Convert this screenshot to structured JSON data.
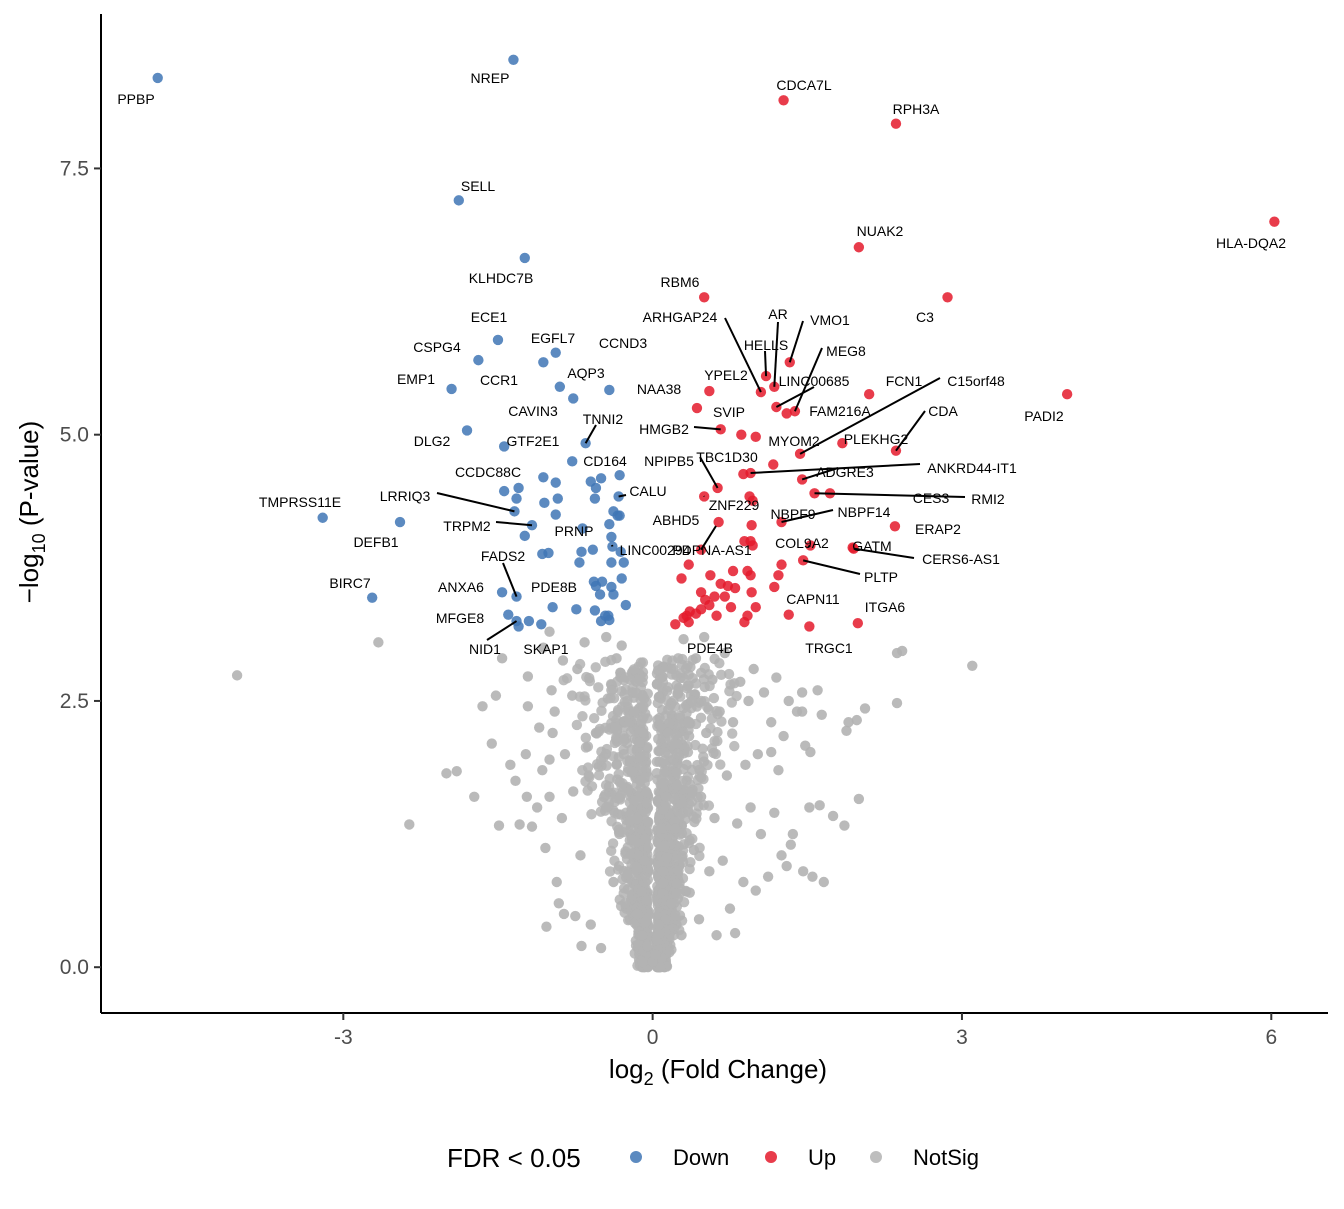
{
  "chart_data": {
    "type": "scatter",
    "xlabel": "log2 (Fold Change)",
    "ylabel": "−log10 (P-value)",
    "xlim": [
      -5.35,
      6.55
    ],
    "ylim": [
      -0.43,
      8.95
    ],
    "x_ticks": [
      -3,
      0,
      3,
      6
    ],
    "y_ticks": [
      0.0,
      2.5,
      5.0,
      7.5
    ],
    "x_tick_labels": [
      "-3",
      "0",
      "3",
      "6"
    ],
    "y_tick_labels": [
      "0.0",
      "2.5",
      "5.0",
      "7.5"
    ],
    "legend": {
      "title": "FDR < 0.05",
      "placement": "bottom",
      "entries": [
        {
          "label": "Down",
          "color": "#3F75B5"
        },
        {
          "label": "Up",
          "color": "#E41A2C"
        },
        {
          "label": "NotSig",
          "color": "#B3B3B3"
        }
      ]
    },
    "series_colors": {
      "Down": "#3F75B5",
      "Up": "#E41A2C",
      "NotSig": "#B3B3B3"
    },
    "labeled_points": [
      {
        "gene": "PPBP",
        "x": -4.8,
        "y": 8.35,
        "group": "Down"
      },
      {
        "gene": "NREP",
        "x": -1.35,
        "y": 8.52,
        "group": "Down"
      },
      {
        "gene": "SELL",
        "x": -1.88,
        "y": 7.2,
        "group": "Down"
      },
      {
        "gene": "KLHDC7B",
        "x": -1.24,
        "y": 6.66,
        "group": "Down"
      },
      {
        "gene": "ECE1",
        "x": -1.5,
        "y": 5.89,
        "group": "Down"
      },
      {
        "gene": "EGFL7",
        "x": -0.94,
        "y": 5.77,
        "group": "Down"
      },
      {
        "gene": "CSPG4",
        "x": -1.69,
        "y": 5.7,
        "group": "Down"
      },
      {
        "gene": "CCND3",
        "x": -0.42,
        "y": 5.42,
        "group": "Down"
      },
      {
        "gene": "AQP3",
        "x": -0.9,
        "y": 5.45,
        "group": "Down"
      },
      {
        "gene": "CCR1",
        "x": -1.06,
        "y": 5.68,
        "group": "Down"
      },
      {
        "gene": "EMP1",
        "x": -1.95,
        "y": 5.43,
        "group": "Down"
      },
      {
        "gene": "CAVIN3",
        "x": -0.77,
        "y": 5.34,
        "group": "Down"
      },
      {
        "gene": "TNNI2",
        "x": -0.65,
        "y": 4.92,
        "group": "Down"
      },
      {
        "gene": "DLG2",
        "x": -1.8,
        "y": 5.04,
        "group": "Down"
      },
      {
        "gene": "GTF2E1",
        "x": -1.44,
        "y": 4.89,
        "group": "Down"
      },
      {
        "gene": "CD164",
        "x": -0.78,
        "y": 4.75,
        "group": "Down"
      },
      {
        "gene": "CCDC88C",
        "x": -1.44,
        "y": 4.47,
        "group": "Down"
      },
      {
        "gene": "CALU",
        "x": -0.33,
        "y": 4.42,
        "group": "Down"
      },
      {
        "gene": "LRRIQ3",
        "x": -1.34,
        "y": 4.28,
        "group": "Down"
      },
      {
        "gene": "TMPRSS11E",
        "x": -3.2,
        "y": 4.22,
        "group": "Down"
      },
      {
        "gene": "DEFB1",
        "x": -2.45,
        "y": 4.18,
        "group": "Down"
      },
      {
        "gene": "TRPM2",
        "x": -1.17,
        "y": 4.15,
        "group": "Down"
      },
      {
        "gene": "PRNP",
        "x": -0.34,
        "y": 4.24,
        "group": "Down"
      },
      {
        "gene": "LINC00294",
        "x": -0.39,
        "y": 3.95,
        "group": "Down"
      },
      {
        "gene": "FADS2",
        "x": -1.32,
        "y": 3.48,
        "group": "Down"
      },
      {
        "gene": "BIRC7",
        "x": -2.72,
        "y": 3.47,
        "group": "Down"
      },
      {
        "gene": "ANXA6",
        "x": -1.46,
        "y": 3.52,
        "group": "Down"
      },
      {
        "gene": "PDE8B",
        "x": -0.55,
        "y": 3.58,
        "group": "Down"
      },
      {
        "gene": "MFGE8",
        "x": -1.4,
        "y": 3.31,
        "group": "Down"
      },
      {
        "gene": "NID1",
        "x": -1.32,
        "y": 3.25,
        "group": "Down"
      },
      {
        "gene": "SKAP1",
        "x": -1.08,
        "y": 3.22,
        "group": "Down"
      },
      {
        "gene": "CDCA7L",
        "x": 1.27,
        "y": 8.14,
        "group": "Up"
      },
      {
        "gene": "RPH3A",
        "x": 2.36,
        "y": 7.92,
        "group": "Up"
      },
      {
        "gene": "HLA-DQA2",
        "x": 6.03,
        "y": 7.0,
        "group": "Up"
      },
      {
        "gene": "NUAK2",
        "x": 2.0,
        "y": 6.76,
        "group": "Up"
      },
      {
        "gene": "RBM6",
        "x": 0.5,
        "y": 6.29,
        "group": "Up"
      },
      {
        "gene": "C3",
        "x": 2.86,
        "y": 6.29,
        "group": "Up"
      },
      {
        "gene": "ARHGAP24",
        "x": 1.05,
        "y": 5.4,
        "group": "Up"
      },
      {
        "gene": "AR",
        "x": 1.18,
        "y": 5.45,
        "group": "Up"
      },
      {
        "gene": "VMO1",
        "x": 1.33,
        "y": 5.68,
        "group": "Up"
      },
      {
        "gene": "HELLS",
        "x": 1.1,
        "y": 5.55,
        "group": "Up"
      },
      {
        "gene": "MEG8",
        "x": 1.38,
        "y": 5.22,
        "group": "Up"
      },
      {
        "gene": "YPEL2",
        "x": 0.55,
        "y": 5.41,
        "group": "Up"
      },
      {
        "gene": "LINC00685",
        "x": 1.2,
        "y": 5.26,
        "group": "Up"
      },
      {
        "gene": "FCN1",
        "x": 2.1,
        "y": 5.38,
        "group": "Up"
      },
      {
        "gene": "C15orf48",
        "x": 1.43,
        "y": 4.82,
        "group": "Up"
      },
      {
        "gene": "NAA38",
        "x": 0.43,
        "y": 5.25,
        "group": "Up"
      },
      {
        "gene": "PADI2",
        "x": 4.02,
        "y": 5.38,
        "group": "Up"
      },
      {
        "gene": "FAM216A",
        "x": 1.3,
        "y": 5.2,
        "group": "Up"
      },
      {
        "gene": "SVIP",
        "x": 0.86,
        "y": 5.0,
        "group": "Up"
      },
      {
        "gene": "CDA",
        "x": 2.36,
        "y": 4.85,
        "group": "Up"
      },
      {
        "gene": "HMGB2",
        "x": 0.66,
        "y": 5.05,
        "group": "Up"
      },
      {
        "gene": "MYOM2",
        "x": 1.0,
        "y": 4.98,
        "group": "Up"
      },
      {
        "gene": "PLEKHG2",
        "x": 1.84,
        "y": 4.92,
        "group": "Up"
      },
      {
        "gene": "TBC1D30",
        "x": 0.88,
        "y": 4.63,
        "group": "Up"
      },
      {
        "gene": "ANKRD44-IT1",
        "x": 0.95,
        "y": 4.64,
        "group": "Up"
      },
      {
        "gene": "NPIPB5",
        "x": 0.63,
        "y": 4.5,
        "group": "Up"
      },
      {
        "gene": "ADGRE3",
        "x": 1.45,
        "y": 4.58,
        "group": "Up"
      },
      {
        "gene": "CES3",
        "x": 1.72,
        "y": 4.45,
        "group": "Up"
      },
      {
        "gene": "RMI2",
        "x": 1.57,
        "y": 4.45,
        "group": "Up"
      },
      {
        "gene": "ZNF229",
        "x": 0.5,
        "y": 4.42,
        "group": "Up"
      },
      {
        "gene": "NBPF9",
        "x": 0.94,
        "y": 4.42,
        "group": "Up"
      },
      {
        "gene": "NBPF14",
        "x": 1.25,
        "y": 4.18,
        "group": "Up"
      },
      {
        "gene": "ABHD5",
        "x": 0.64,
        "y": 4.18,
        "group": "Up"
      },
      {
        "gene": "ERAP2",
        "x": 2.35,
        "y": 4.14,
        "group": "Up"
      },
      {
        "gene": "PDPNA-AS1",
        "x": 0.47,
        "y": 3.92,
        "group": "Up"
      },
      {
        "gene": "COL9A2",
        "x": 1.53,
        "y": 3.96,
        "group": "Up"
      },
      {
        "gene": "GATM",
        "x": 1.94,
        "y": 3.94,
        "group": "Up"
      },
      {
        "gene": "CERS6-AS1",
        "x": 1.95,
        "y": 3.93,
        "group": "Up"
      },
      {
        "gene": "PLTP",
        "x": 1.46,
        "y": 3.82,
        "group": "Up"
      },
      {
        "gene": "CAPN11",
        "x": 1.32,
        "y": 3.31,
        "group": "Up"
      },
      {
        "gene": "ITGA6",
        "x": 1.99,
        "y": 3.23,
        "group": "Up"
      },
      {
        "gene": "PDE4B",
        "x": 0.35,
        "y": 3.24,
        "group": "Up"
      },
      {
        "gene": "TRGC1",
        "x": 1.52,
        "y": 3.2,
        "group": "Up"
      }
    ],
    "unlabeled_down": [
      [
        -1.24,
        4.05
      ],
      [
        -0.32,
        4.62
      ],
      [
        -0.32,
        4.24
      ],
      [
        -0.5,
        4.59
      ],
      [
        -0.6,
        4.56
      ],
      [
        -0.55,
        4.5
      ],
      [
        -0.56,
        4.4
      ],
      [
        -0.94,
        4.55
      ],
      [
        -0.92,
        4.4
      ],
      [
        -1.06,
        4.6
      ],
      [
        -1.32,
        4.4
      ],
      [
        -1.3,
        4.5
      ],
      [
        -1.05,
        4.36
      ],
      [
        -0.94,
        4.25
      ],
      [
        -0.42,
        4.16
      ],
      [
        -0.38,
        4.28
      ],
      [
        -0.68,
        4.12
      ],
      [
        -0.4,
        4.04
      ],
      [
        -0.58,
        3.92
      ],
      [
        -0.4,
        3.8
      ],
      [
        -0.28,
        3.8
      ],
      [
        -0.71,
        3.8
      ],
      [
        -1.01,
        3.89
      ],
      [
        -1.07,
        3.88
      ],
      [
        -0.69,
        3.9
      ],
      [
        -0.31,
        3.9
      ],
      [
        -0.57,
        3.62
      ],
      [
        -0.49,
        3.62
      ],
      [
        -0.4,
        3.57
      ],
      [
        -0.3,
        3.65
      ],
      [
        -0.51,
        3.5
      ],
      [
        -0.38,
        3.5
      ],
      [
        -0.26,
        3.4
      ],
      [
        -0.46,
        3.3
      ],
      [
        -0.5,
        3.25
      ],
      [
        -0.42,
        3.26
      ],
      [
        -0.56,
        3.35
      ],
      [
        -0.74,
        3.36
      ],
      [
        -0.97,
        3.38
      ],
      [
        -1.3,
        3.2
      ],
      [
        -1.2,
        3.25
      ],
      [
        -0.43,
        3.3
      ]
    ],
    "unlabeled_up": [
      [
        0.22,
        3.22
      ],
      [
        0.3,
        3.28
      ],
      [
        0.33,
        3.3
      ],
      [
        0.36,
        3.34
      ],
      [
        0.42,
        3.32
      ],
      [
        0.47,
        3.36
      ],
      [
        0.55,
        3.4
      ],
      [
        0.62,
        3.3
      ],
      [
        0.76,
        3.38
      ],
      [
        0.92,
        3.3
      ],
      [
        1.0,
        3.38
      ],
      [
        0.89,
        3.24
      ],
      [
        0.35,
        3.78
      ],
      [
        0.28,
        3.65
      ],
      [
        0.47,
        3.52
      ],
      [
        0.6,
        3.48
      ],
      [
        0.66,
        3.6
      ],
      [
        0.73,
        3.58
      ],
      [
        0.8,
        3.56
      ],
      [
        0.92,
        3.72
      ],
      [
        0.95,
        3.68
      ],
      [
        0.96,
        3.52
      ],
      [
        1.18,
        3.57
      ],
      [
        1.22,
        3.68
      ],
      [
        1.25,
        3.78
      ],
      [
        0.56,
        3.68
      ],
      [
        0.51,
        3.45
      ],
      [
        0.7,
        3.48
      ],
      [
        0.78,
        3.72
      ],
      [
        0.89,
        4.0
      ],
      [
        0.95,
        4.0
      ],
      [
        0.97,
        3.96
      ],
      [
        0.96,
        4.15
      ],
      [
        0.97,
        4.38
      ],
      [
        1.17,
        4.72
      ]
    ],
    "notsig_scatter": [
      [
        -4.03,
        2.74
      ],
      [
        -2.66,
        3.05
      ],
      [
        -2.36,
        1.34
      ],
      [
        -2.0,
        1.82
      ],
      [
        -1.9,
        1.84
      ],
      [
        -1.73,
        1.6
      ],
      [
        -1.65,
        2.45
      ],
      [
        -1.56,
        2.1
      ],
      [
        -1.52,
        2.55
      ],
      [
        -1.49,
        1.33
      ],
      [
        -1.46,
        2.9
      ],
      [
        -1.38,
        1.9
      ],
      [
        -1.33,
        1.75
      ],
      [
        -1.29,
        1.34
      ],
      [
        -1.21,
        2.73
      ],
      [
        -1.21,
        2.45
      ],
      [
        -1.23,
        2.0
      ],
      [
        -1.22,
        1.6
      ],
      [
        -1.17,
        1.32
      ],
      [
        -1.12,
        1.5
      ],
      [
        -1.06,
        3.0
      ],
      [
        -1.1,
        2.25
      ],
      [
        -1.07,
        1.85
      ],
      [
        -1.04,
        1.12
      ],
      [
        -1.03,
        0.38
      ],
      [
        -1.0,
        3.15
      ],
      [
        -0.98,
        2.6
      ],
      [
        -1.0,
        1.95
      ],
      [
        -1.0,
        1.6
      ],
      [
        -0.97,
        2.2
      ],
      [
        -0.95,
        2.4
      ],
      [
        -0.93,
        0.8
      ],
      [
        -0.91,
        0.6
      ],
      [
        -0.87,
        2.88
      ],
      [
        -0.88,
        1.4
      ],
      [
        -0.86,
        0.5
      ],
      [
        -0.85,
        2.0
      ],
      [
        -0.78,
        2.55
      ],
      [
        -0.77,
        1.65
      ],
      [
        -0.75,
        0.48
      ],
      [
        -0.73,
        2.8
      ],
      [
        -0.7,
        1.05
      ],
      [
        -0.69,
        0.2
      ],
      [
        -0.66,
        3.05
      ],
      [
        -0.62,
        1.8
      ],
      [
        -0.6,
        0.4
      ],
      [
        -0.55,
        2.2
      ],
      [
        -0.5,
        0.18
      ],
      [
        -0.45,
        3.1
      ],
      [
        -0.45,
        1.5
      ],
      [
        -0.4,
        2.6
      ],
      [
        -0.38,
        0.8
      ],
      [
        -0.35,
        2.9
      ],
      [
        -0.3,
        3.02
      ],
      [
        -0.28,
        2.0
      ],
      [
        -0.22,
        2.7
      ],
      [
        -0.2,
        1.2
      ],
      [
        -0.18,
        2.4
      ],
      [
        -0.15,
        0.5
      ],
      [
        -0.12,
        1.75
      ],
      [
        -0.1,
        0.3
      ],
      [
        -0.08,
        1.0
      ],
      [
        -0.05,
        0.2
      ],
      [
        -0.03,
        0.1
      ],
      [
        0.0,
        0.05
      ],
      [
        0.03,
        0.12
      ],
      [
        0.06,
        0.4
      ],
      [
        0.1,
        0.9
      ],
      [
        0.13,
        1.6
      ],
      [
        0.15,
        2.2
      ],
      [
        0.18,
        0.6
      ],
      [
        0.2,
        2.8
      ],
      [
        0.22,
        1.3
      ],
      [
        0.25,
        2.6
      ],
      [
        0.28,
        0.3
      ],
      [
        0.3,
        3.08
      ],
      [
        0.33,
        1.9
      ],
      [
        0.36,
        0.7
      ],
      [
        0.38,
        2.5
      ],
      [
        0.4,
        1.1
      ],
      [
        0.42,
        2.9
      ],
      [
        0.45,
        0.45
      ],
      [
        0.47,
        1.6
      ],
      [
        0.5,
        3.1
      ],
      [
        0.52,
        2.2
      ],
      [
        0.55,
        0.9
      ],
      [
        0.58,
        2.7
      ],
      [
        0.6,
        1.4
      ],
      [
        0.62,
        0.3
      ],
      [
        0.65,
        2.4
      ],
      [
        0.68,
        1.0
      ],
      [
        0.7,
        2.95
      ],
      [
        0.72,
        1.8
      ],
      [
        0.75,
        0.55
      ],
      [
        0.78,
        2.3
      ],
      [
        0.8,
        0.32
      ],
      [
        0.82,
        1.35
      ],
      [
        0.85,
        2.68
      ],
      [
        0.88,
        0.8
      ],
      [
        0.9,
        1.9
      ],
      [
        0.93,
        2.5
      ],
      [
        0.95,
        1.5
      ],
      [
        0.98,
        2.8
      ],
      [
        1.0,
        0.72
      ],
      [
        1.02,
        2.0
      ],
      [
        1.05,
        1.25
      ],
      [
        1.08,
        2.58
      ],
      [
        1.12,
        0.85
      ],
      [
        1.15,
        2.3
      ],
      [
        1.18,
        1.45
      ],
      [
        1.2,
        2.72
      ],
      [
        1.22,
        1.85
      ],
      [
        1.25,
        1.05
      ],
      [
        1.27,
        2.17
      ],
      [
        1.3,
        0.95
      ],
      [
        1.32,
        2.5
      ],
      [
        1.34,
        1.15
      ],
      [
        1.36,
        1.25
      ],
      [
        1.4,
        2.4
      ],
      [
        1.45,
        2.58
      ],
      [
        1.46,
        0.9
      ],
      [
        1.48,
        2.08
      ],
      [
        1.52,
        1.5
      ],
      [
        1.55,
        0.85
      ],
      [
        1.62,
        1.52
      ],
      [
        1.66,
        0.8
      ],
      [
        1.75,
        1.42
      ],
      [
        1.86,
        1.33
      ],
      [
        1.88,
        2.22
      ],
      [
        1.9,
        2.3
      ],
      [
        1.98,
        2.32
      ],
      [
        2.0,
        1.58
      ],
      [
        2.06,
        2.43
      ],
      [
        2.37,
        2.48
      ],
      [
        2.37,
        2.95
      ],
      [
        2.42,
        2.97
      ],
      [
        3.1,
        2.83
      ],
      [
        1.64,
        2.37
      ],
      [
        1.45,
        2.4
      ],
      [
        1.6,
        2.6
      ],
      [
        1.53,
        2.02
      ],
      [
        1.15,
        2.02
      ]
    ]
  }
}
